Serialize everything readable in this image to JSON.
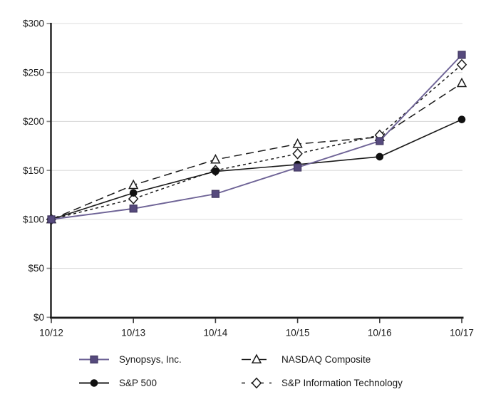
{
  "chart_data": {
    "type": "line",
    "categories": [
      "10/12",
      "10/13",
      "10/14",
      "10/15",
      "10/16",
      "10/17"
    ],
    "y_tick_labels": [
      "$0",
      "$50",
      "$100",
      "$150",
      "$200",
      "$250",
      "$300"
    ],
    "ylim": [
      0,
      300
    ],
    "ytick_step": 50,
    "grid": "horizontal-light",
    "legend_position": "bottom",
    "series": [
      {
        "name": "Synopsys, Inc.",
        "values": [
          100,
          111,
          126,
          153,
          180,
          268
        ],
        "color": "#6E6396",
        "dash": null,
        "marker": {
          "shape": "square",
          "fill": "#564A7D",
          "stroke": "#40365F"
        }
      },
      {
        "name": "S&P 500",
        "values": [
          100,
          127,
          149,
          156,
          164,
          202
        ],
        "color": "#1A1A1A",
        "dash": null,
        "marker": {
          "shape": "circle",
          "fill": "#111111",
          "stroke": "#111111"
        }
      },
      {
        "name": "NASDAQ Composite",
        "values": [
          100,
          135,
          161,
          177,
          184,
          239
        ],
        "color": "#1A1A1A",
        "dash": "11 6",
        "marker": {
          "shape": "triangle",
          "fill": "#FFFFFF",
          "stroke": "#1A1A1A"
        }
      },
      {
        "name": "S&P Information Technology",
        "values": [
          100,
          121,
          150,
          167,
          186,
          258
        ],
        "color": "#1A1A1A",
        "dash": "4 4",
        "marker": {
          "shape": "diamond",
          "fill": "#FFFFFF",
          "stroke": "#1A1A1A"
        }
      }
    ],
    "draw_order": [
      2,
      3,
      1,
      0
    ],
    "legend_order": [
      0,
      2,
      1,
      3
    ],
    "colors": {
      "accent_purple": "#564A7D",
      "line_black": "#1A1A1A",
      "gridline": "#DCDCDC",
      "y_tick": "#8C8C8C",
      "x_tick": "#3C3C3C",
      "axis": "#1A1A1A",
      "background": "#FFFFFF"
    }
  }
}
